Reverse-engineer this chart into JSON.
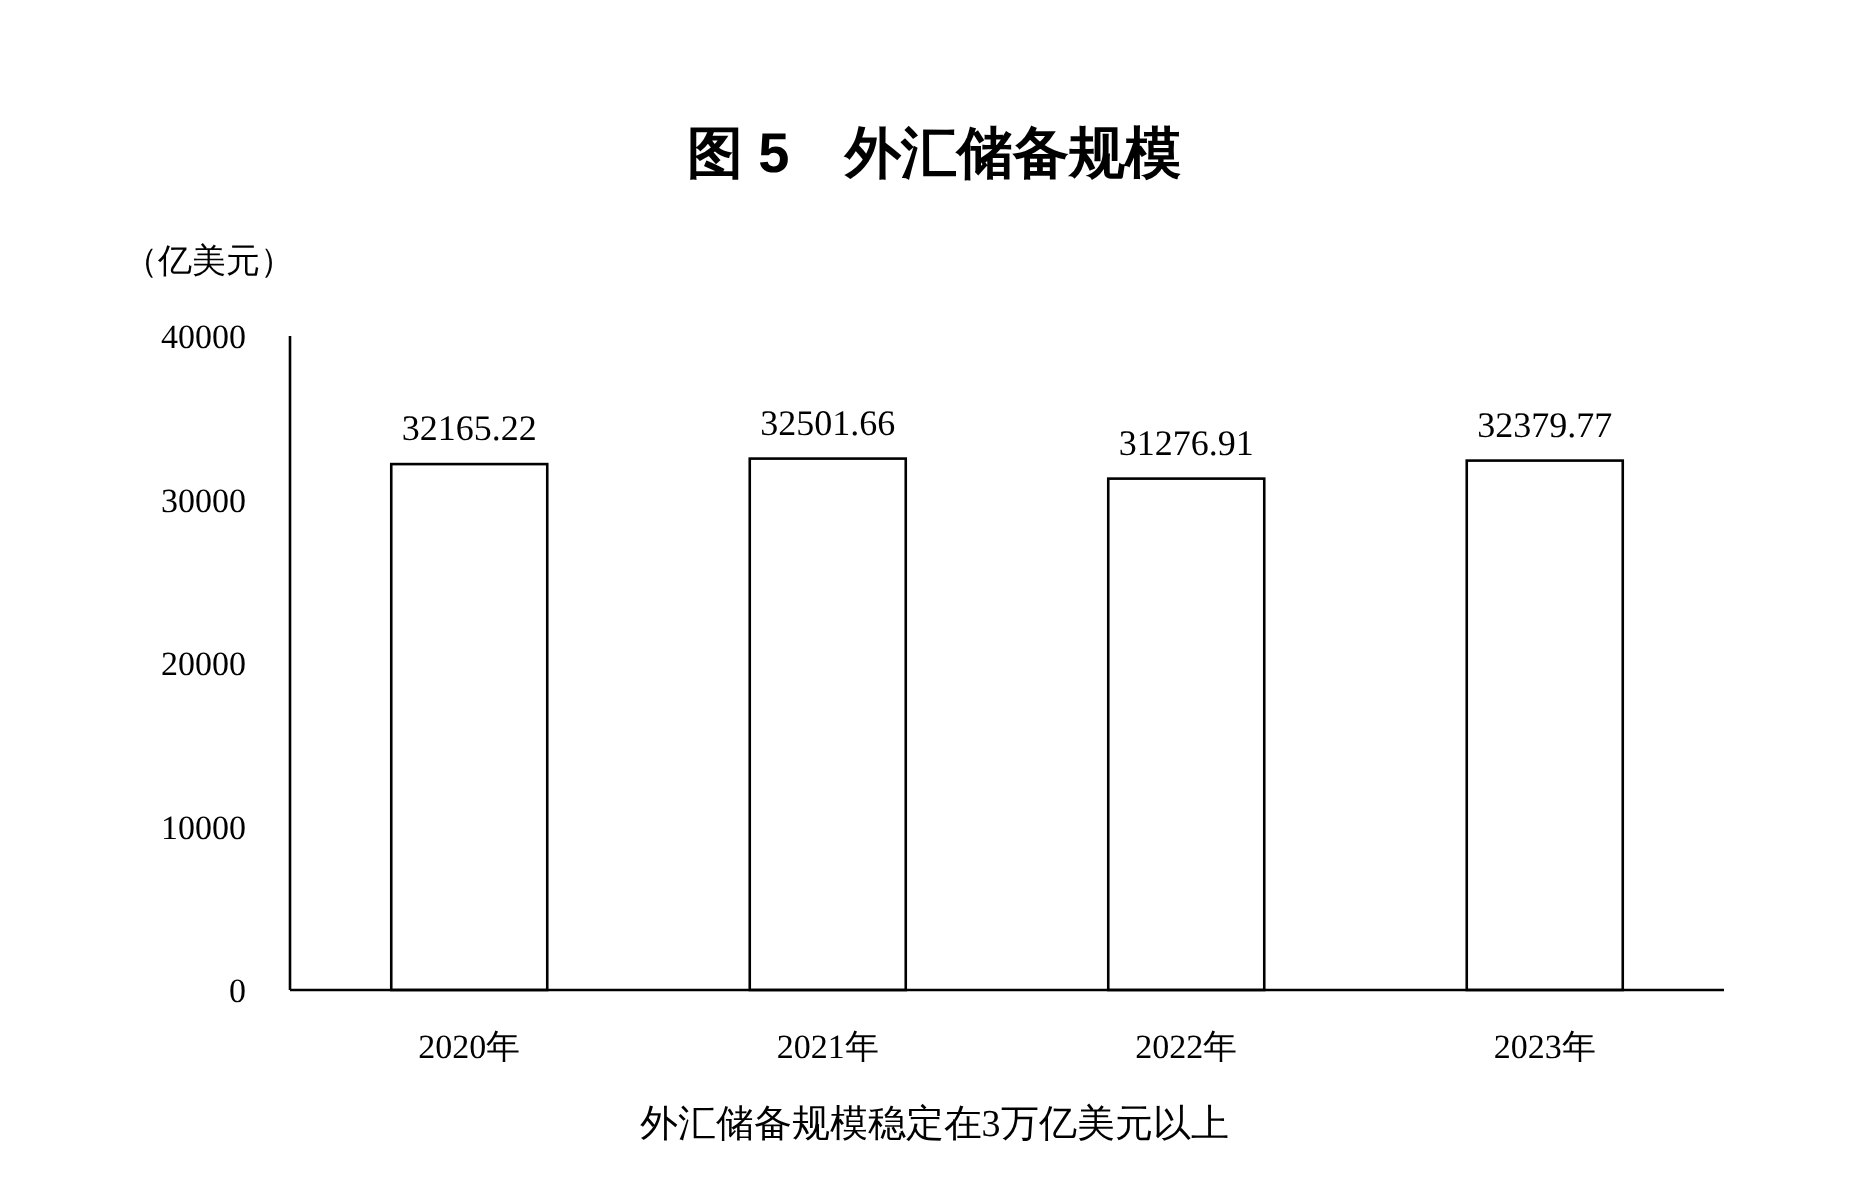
{
  "chart_data": {
    "type": "bar",
    "title": "图 5　外汇储备规模",
    "ylabel": "（亿美元）",
    "categories": [
      "2020年",
      "2021年",
      "2022年",
      "2023年"
    ],
    "values": [
      32165.22,
      32501.66,
      31276.91,
      32379.77
    ],
    "color": "#ffffff",
    "ylim": [
      0,
      40000
    ],
    "yticks": [
      0,
      10000,
      20000,
      30000,
      40000
    ],
    "data_labels": true,
    "grid": false,
    "annotations": [
      "外汇储备规模稳定在3万亿美元以上"
    ]
  }
}
